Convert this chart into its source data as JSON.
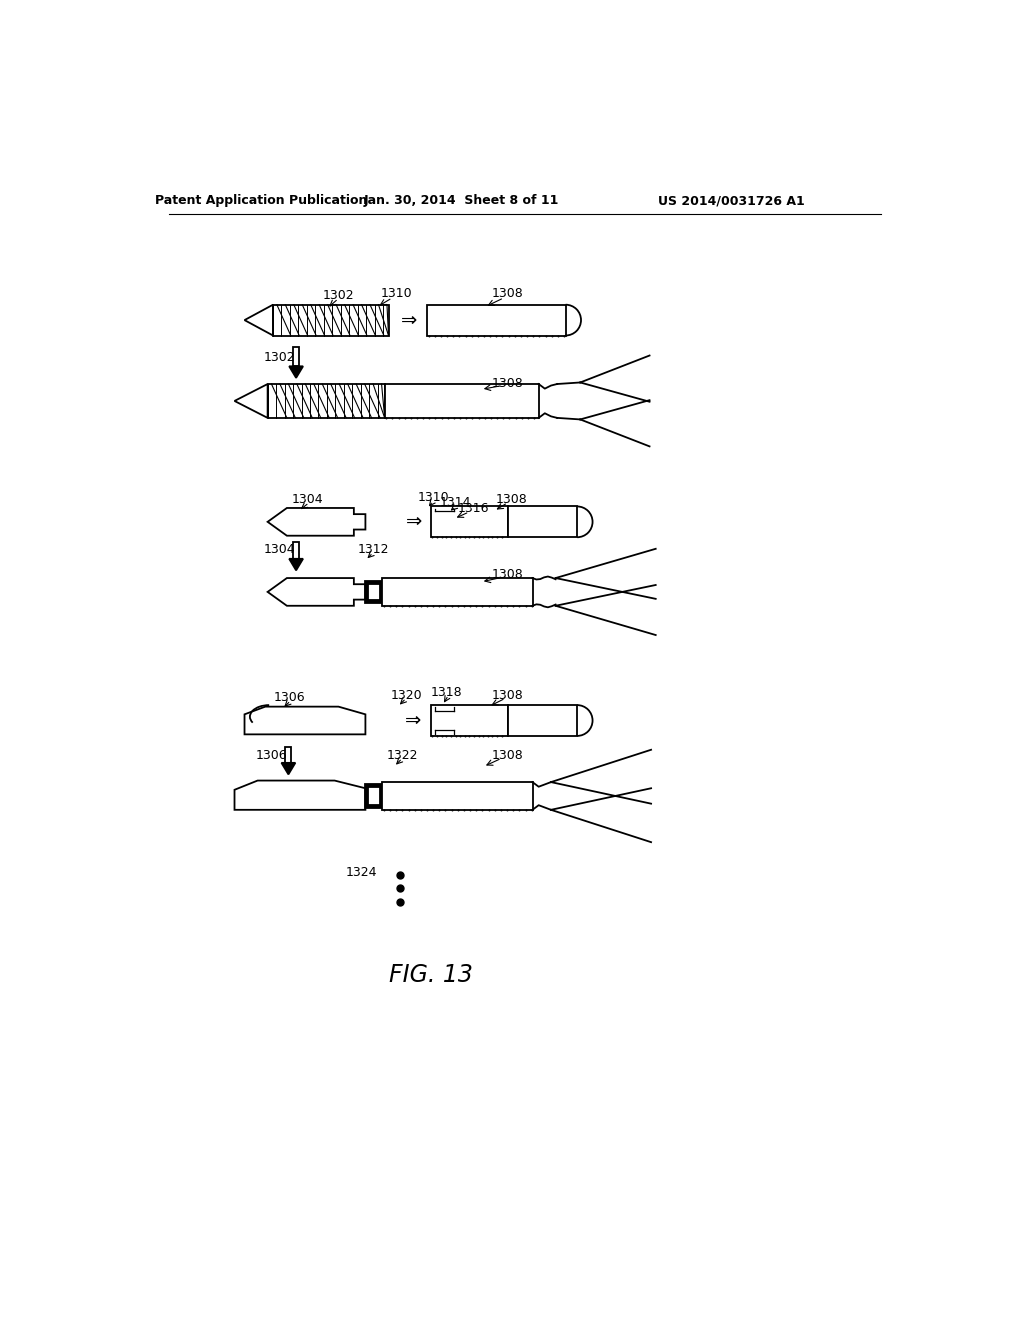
{
  "bg_color": "#ffffff",
  "header_left": "Patent Application Publication",
  "header_mid": "Jan. 30, 2014  Sheet 8 of 11",
  "header_right": "US 2014/0031726 A1",
  "fig_label": "FIG. 13",
  "lc": "#000000",
  "lw": 1.3
}
